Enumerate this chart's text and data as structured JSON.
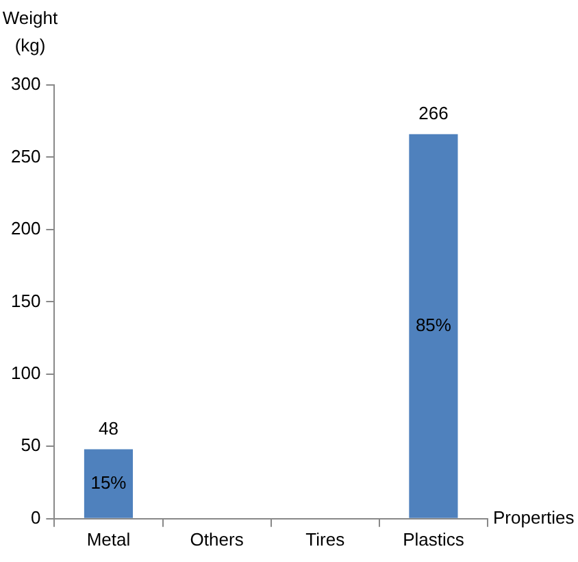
{
  "chart_data": {
    "type": "bar",
    "ylabel": "Weight\n(kg)",
    "xlabel": "Properties",
    "categories": [
      "Metal",
      "Others",
      "Tires",
      "Plastics"
    ],
    "values": [
      48,
      0,
      0,
      266
    ],
    "color": "#4f81bd",
    "value_labels": [
      "48",
      null,
      null,
      "266"
    ],
    "annotations": [
      "15%",
      "85%"
    ],
    "ylim": [
      0,
      300
    ],
    "yticks": [
      0,
      50,
      100,
      150,
      200,
      250,
      300
    ],
    "grid": false,
    "legend": false
  }
}
